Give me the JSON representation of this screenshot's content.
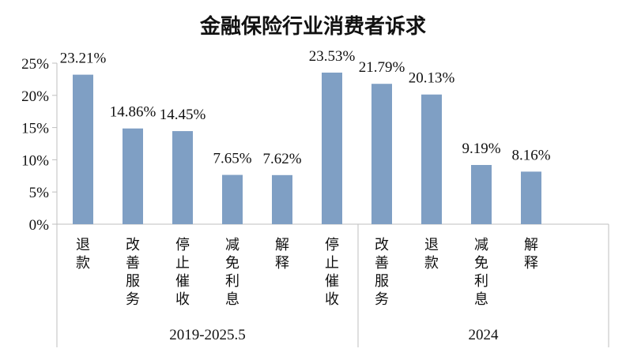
{
  "chart_data": {
    "type": "bar",
    "title": "金融保险行业消费者诉求",
    "ylim": [
      0,
      25
    ],
    "yticks": [
      "0%",
      "5%",
      "10%",
      "15%",
      "20%",
      "25%"
    ],
    "ytick_values": [
      0,
      5,
      10,
      15,
      20,
      25
    ],
    "grid": false,
    "bar_color": "#7f9fc4",
    "groups": [
      {
        "name": "2019-2025.5",
        "categories": [
          "退款",
          "改善服务",
          "停止催收",
          "减免利息",
          "解释"
        ],
        "values": [
          23.21,
          14.86,
          14.45,
          7.65,
          7.62
        ],
        "labels": [
          "23.21%",
          "14.86%",
          "14.45%",
          "7.65%",
          "7.62%"
        ]
      },
      {
        "name": "2024",
        "categories": [
          "停止催收",
          "改善服务",
          "退款",
          "减免利息",
          "解释"
        ],
        "values": [
          23.53,
          21.79,
          20.13,
          9.19,
          8.16
        ],
        "labels": [
          "23.53%",
          "21.79%",
          "20.13%",
          "9.19%",
          "8.16%"
        ]
      }
    ]
  }
}
